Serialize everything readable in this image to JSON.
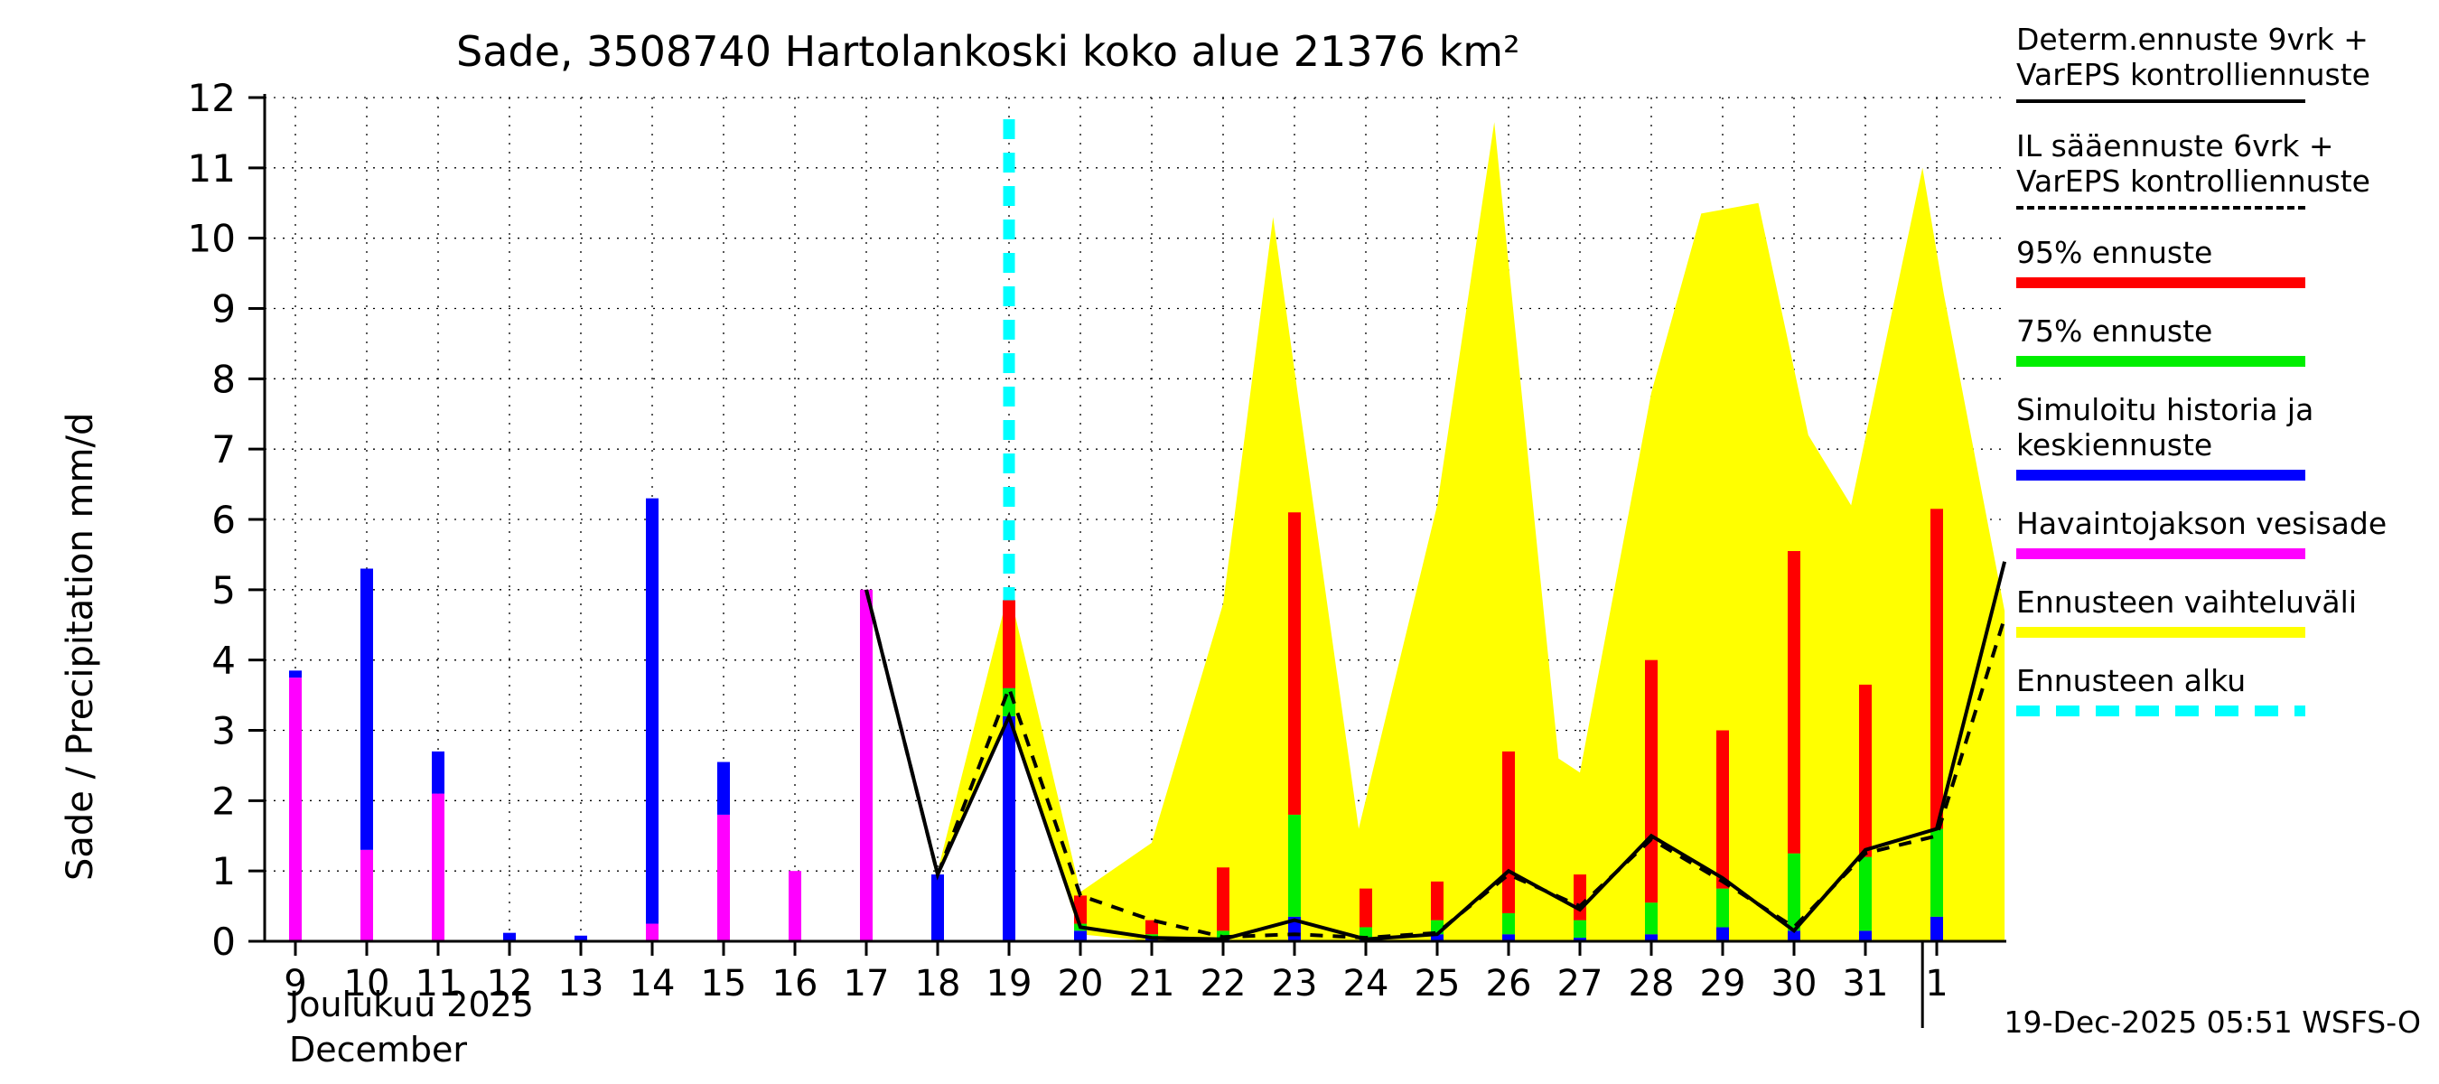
{
  "title": "Sade, 3508740 Hartolankoski koko alue 21376 km²",
  "ylabel": "Sade / Precipitation  mm/d",
  "xaxis": {
    "month_fi": "Joulukuu 2025",
    "month_en": "December"
  },
  "footer": {
    "timestamp": "19-Dec-2025 05:51  WSFS-O"
  },
  "palette": {
    "black": "#000000",
    "red": "#ff0000",
    "green": "#00ee00",
    "blue": "#0000ff",
    "magenta": "#ff00ff",
    "yellow": "#ffff00",
    "cyan": "#00ffff",
    "background": "#ffffff"
  },
  "legend": {
    "items": [
      {
        "line1": "Determ.ennuste 9vrk +",
        "line2": "VarEPS kontrolliennuste",
        "kind": "line",
        "color": "#000000"
      },
      {
        "line1": "IL sääennuste 6vrk +",
        "line2": "VarEPS kontrolliennuste",
        "kind": "dashed-line",
        "color": "#000000"
      },
      {
        "line1": "95% ennuste",
        "kind": "thick",
        "color": "#ff0000"
      },
      {
        "line1": "75% ennuste",
        "kind": "thick",
        "color": "#00ee00"
      },
      {
        "line1": "Simuloitu historia ja",
        "line2": "keskiennuste",
        "kind": "thick",
        "color": "#0000ff"
      },
      {
        "line1": "Havaintojakson vesisade",
        "kind": "thick",
        "color": "#ff00ff"
      },
      {
        "line1": "Ennusteen vaihteluväli",
        "kind": "thick",
        "color": "#ffff00"
      },
      {
        "line1": "Ennusteen alku",
        "kind": "thick-dashed",
        "color": "#00ffff"
      }
    ]
  },
  "chart_data": {
    "type": "bar",
    "subtype": "hydrological-precipitation-forecast",
    "title": "Sade, 3508740 Hartolankoski koko alue 21376 km²",
    "xlabel": "Joulukuu 2025 / December",
    "ylabel": "Sade / Precipitation mm/d",
    "ylim": [
      0,
      12
    ],
    "grid": "dotted",
    "legend_position": "right-outside",
    "x_tick_labels": [
      "9",
      "10",
      "11",
      "12",
      "13",
      "14",
      "15",
      "16",
      "17",
      "18",
      "19",
      "20",
      "21",
      "22",
      "23",
      "24",
      "25",
      "26",
      "27",
      "28",
      "29",
      "30",
      "31",
      "1"
    ],
    "y_ticks": [
      0,
      1,
      2,
      3,
      4,
      5,
      6,
      7,
      8,
      9,
      10,
      11,
      12
    ],
    "bars": {
      "stack_order_bottom_to_top": [
        "magenta",
        "blue",
        "green",
        "red"
      ],
      "magenta": [
        3.75,
        1.3,
        2.1,
        0,
        0,
        0.25,
        1.8,
        1.0,
        5.0,
        0,
        0,
        0,
        0,
        0,
        0,
        0,
        0,
        0,
        0,
        0,
        0,
        0,
        0,
        0
      ],
      "blue": [
        0.1,
        4.0,
        0.6,
        0.12,
        0.08,
        6.05,
        0.75,
        0,
        0,
        0.95,
        3.2,
        0.15,
        0.05,
        0.05,
        0.35,
        0.05,
        0.1,
        0.1,
        0.05,
        0.1,
        0.2,
        0.15,
        0.15,
        0.35
      ],
      "green": [
        0,
        0,
        0,
        0,
        0,
        0,
        0,
        0,
        0,
        0,
        0.4,
        0.1,
        0.05,
        0.1,
        1.45,
        0.15,
        0.2,
        0.3,
        0.25,
        0.45,
        0.55,
        1.1,
        1.05,
        1.25
      ],
      "red": [
        0,
        0,
        0,
        0,
        0,
        0,
        0,
        0,
        0,
        0,
        1.25,
        0.4,
        0.2,
        0.9,
        4.3,
        0.55,
        0.55,
        2.3,
        0.65,
        3.45,
        2.25,
        4.3,
        2.45,
        4.55
      ]
    },
    "band_upper": [
      [
        9,
        1.0
      ],
      [
        10,
        5.0
      ],
      [
        11,
        0.7
      ],
      [
        12,
        1.4
      ],
      [
        13,
        4.8
      ],
      [
        13.7,
        10.3
      ],
      [
        14.9,
        1.6
      ],
      [
        16,
        6.2
      ],
      [
        16.8,
        11.65
      ],
      [
        17.7,
        2.6
      ],
      [
        18,
        2.4
      ],
      [
        19,
        7.8
      ],
      [
        19.7,
        10.35
      ],
      [
        20.5,
        10.5
      ],
      [
        21.2,
        7.2
      ],
      [
        21.8,
        6.2
      ],
      [
        22.8,
        11.0
      ],
      [
        23.1,
        9.2
      ],
      [
        23.95,
        4.7
      ]
    ],
    "band_lower": [
      [
        9,
        0.95
      ],
      [
        10,
        3.2
      ],
      [
        11,
        0.1
      ],
      [
        12,
        0.0
      ],
      [
        23.95,
        0.0
      ]
    ],
    "line_solid": [
      [
        8,
        5.0
      ],
      [
        9,
        0.95
      ],
      [
        10,
        3.2
      ],
      [
        11,
        0.2
      ],
      [
        12,
        0.05
      ],
      [
        13,
        0.03
      ],
      [
        14,
        0.3
      ],
      [
        15,
        0.03
      ],
      [
        16,
        0.1
      ],
      [
        17,
        1.0
      ],
      [
        18,
        0.45
      ],
      [
        19,
        1.5
      ],
      [
        20,
        0.9
      ],
      [
        21,
        0.15
      ],
      [
        22,
        1.3
      ],
      [
        23,
        1.6
      ],
      [
        23.95,
        5.4
      ]
    ],
    "line_dashed": [
      [
        8,
        5.0
      ],
      [
        9,
        0.95
      ],
      [
        10,
        3.6
      ],
      [
        11,
        0.65
      ],
      [
        12,
        0.3
      ],
      [
        13,
        0.06
      ],
      [
        14,
        0.1
      ],
      [
        15,
        0.05
      ],
      [
        16,
        0.12
      ],
      [
        17,
        0.95
      ],
      [
        18,
        0.5
      ],
      [
        19,
        1.45
      ],
      [
        20,
        0.85
      ],
      [
        21,
        0.2
      ],
      [
        22,
        1.25
      ],
      [
        23,
        1.5
      ],
      [
        23.95,
        4.6
      ]
    ],
    "forecast_start": {
      "x_index": 10,
      "x_label": "19",
      "top": 11.8
    },
    "month_boundary_x_index": 22.8
  }
}
